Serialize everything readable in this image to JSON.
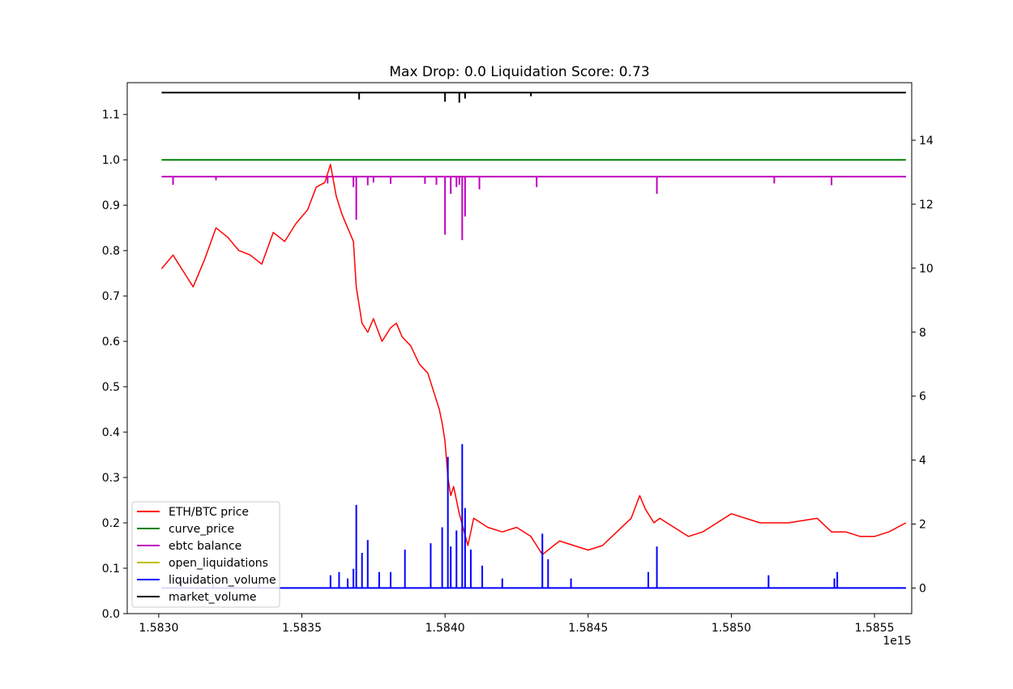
{
  "chart_data": {
    "type": "line",
    "title": "Max Drop: 0.0 Liquidation Score: 0.73",
    "x_offset_label": "1e15",
    "xlabel": "",
    "ylabel_left": "",
    "ylabel_right": "",
    "xlim": [
      1.58289,
      1.58563
    ],
    "ylim_left": [
      0.0,
      1.17
    ],
    "ylim_right": [
      -0.8,
      15.8
    ],
    "x_ticks": [
      1.583,
      1.5835,
      1.584,
      1.5845,
      1.585,
      1.5855
    ],
    "x_tick_labels": [
      "1.5830",
      "1.5835",
      "1.5840",
      "1.5845",
      "1.5850",
      "1.5855"
    ],
    "y_left_ticks": [
      0.0,
      0.1,
      0.2,
      0.3,
      0.4,
      0.5,
      0.6,
      0.7,
      0.8,
      0.9,
      1.0,
      1.1
    ],
    "y_left_tick_labels": [
      "0.0",
      "0.1",
      "0.2",
      "0.3",
      "0.4",
      "0.5",
      "0.6",
      "0.7",
      "0.8",
      "0.9",
      "1.0",
      "1.1"
    ],
    "y_right_ticks": [
      0,
      2,
      4,
      6,
      8,
      10,
      12,
      14
    ],
    "y_right_tick_labels": [
      "0",
      "2",
      "4",
      "6",
      "8",
      "10",
      "12",
      "14"
    ],
    "legend_location": "lower-left",
    "series": [
      {
        "name": "ETH/BTC price",
        "color": "#ff0000",
        "axis": "left",
        "x": [
          1.58301,
          1.58305,
          1.58309,
          1.58312,
          1.58316,
          1.5832,
          1.58324,
          1.58328,
          1.58332,
          1.58336,
          1.5834,
          1.58344,
          1.58348,
          1.58352,
          1.58355,
          1.58358,
          1.5836,
          1.58362,
          1.58364,
          1.58366,
          1.58368,
          1.58369,
          1.58371,
          1.58373,
          1.58375,
          1.58378,
          1.58381,
          1.58383,
          1.58385,
          1.58388,
          1.58391,
          1.58394,
          1.58396,
          1.58398,
          1.58399,
          1.584,
          1.58401,
          1.58402,
          1.58403,
          1.58405,
          1.58408,
          1.5841,
          1.58415,
          1.5842,
          1.58425,
          1.5843,
          1.58432,
          1.58434,
          1.58436,
          1.5844,
          1.58445,
          1.5845,
          1.58455,
          1.5846,
          1.58465,
          1.58468,
          1.5847,
          1.58473,
          1.58475,
          1.5848,
          1.58485,
          1.5849,
          1.58495,
          1.585,
          1.5851,
          1.5852,
          1.5853,
          1.58535,
          1.5854,
          1.58545,
          1.5855,
          1.58555,
          1.58561
        ],
        "values": [
          0.76,
          0.79,
          0.75,
          0.72,
          0.78,
          0.85,
          0.83,
          0.8,
          0.79,
          0.77,
          0.84,
          0.82,
          0.86,
          0.89,
          0.94,
          0.95,
          0.99,
          0.92,
          0.88,
          0.85,
          0.82,
          0.72,
          0.64,
          0.62,
          0.65,
          0.6,
          0.63,
          0.64,
          0.61,
          0.59,
          0.55,
          0.53,
          0.49,
          0.45,
          0.42,
          0.38,
          0.3,
          0.26,
          0.28,
          0.22,
          0.15,
          0.21,
          0.19,
          0.18,
          0.19,
          0.17,
          0.15,
          0.13,
          0.14,
          0.16,
          0.15,
          0.14,
          0.15,
          0.18,
          0.21,
          0.26,
          0.23,
          0.2,
          0.21,
          0.19,
          0.17,
          0.18,
          0.2,
          0.22,
          0.2,
          0.2,
          0.21,
          0.18,
          0.18,
          0.17,
          0.17,
          0.18,
          0.2
        ]
      },
      {
        "name": "curve_price",
        "color": "#008000",
        "axis": "left",
        "x": [
          1.58301,
          1.58561
        ],
        "values": [
          1.0,
          1.0
        ]
      },
      {
        "name": "ebtc balance",
        "color": "#bf00bf",
        "axis": "left",
        "x": [
          1.58301,
          1.58561
        ],
        "values": [
          0.963,
          0.963
        ],
        "dips": [
          [
            1.58305,
            0.945
          ],
          [
            1.5832,
            0.955
          ],
          [
            1.58359,
            0.948
          ],
          [
            1.58368,
            0.94
          ],
          [
            1.58369,
            0.868
          ],
          [
            1.58373,
            0.944
          ],
          [
            1.58375,
            0.95
          ],
          [
            1.58381,
            0.947
          ],
          [
            1.58393,
            0.947
          ],
          [
            1.58397,
            0.945
          ],
          [
            1.584,
            0.835
          ],
          [
            1.58402,
            0.925
          ],
          [
            1.58404,
            0.94
          ],
          [
            1.58405,
            0.945
          ],
          [
            1.58406,
            0.823
          ],
          [
            1.58407,
            0.875
          ],
          [
            1.58412,
            0.935
          ],
          [
            1.58432,
            0.94
          ],
          [
            1.58474,
            0.925
          ],
          [
            1.58515,
            0.948
          ],
          [
            1.58535,
            0.944
          ]
        ]
      },
      {
        "name": "open_liquidations",
        "color": "#bfbf00",
        "axis": "left",
        "x": [],
        "values": []
      },
      {
        "name": "liquidation_volume",
        "color": "#0000ff",
        "axis": "right",
        "x": [
          1.58301,
          1.58561
        ],
        "values": [
          0.0,
          0.0
        ],
        "spikes": [
          [
            1.58308,
            0.25
          ],
          [
            1.58319,
            0.2
          ],
          [
            1.58335,
            0.18
          ],
          [
            1.5836,
            0.4
          ],
          [
            1.58363,
            0.5
          ],
          [
            1.58366,
            0.3
          ],
          [
            1.58368,
            0.6
          ],
          [
            1.58369,
            2.6
          ],
          [
            1.58371,
            1.1
          ],
          [
            1.58373,
            1.5
          ],
          [
            1.58377,
            0.5
          ],
          [
            1.58381,
            0.5
          ],
          [
            1.58386,
            1.2
          ],
          [
            1.58395,
            1.4
          ],
          [
            1.58399,
            1.9
          ],
          [
            1.58401,
            4.1
          ],
          [
            1.58402,
            1.3
          ],
          [
            1.58404,
            1.8
          ],
          [
            1.58406,
            4.5
          ],
          [
            1.58407,
            2.5
          ],
          [
            1.58409,
            1.2
          ],
          [
            1.58413,
            0.7
          ],
          [
            1.5842,
            0.3
          ],
          [
            1.58434,
            1.7
          ],
          [
            1.58436,
            0.9
          ],
          [
            1.58444,
            0.3
          ],
          [
            1.58471,
            0.5
          ],
          [
            1.58474,
            1.3
          ],
          [
            1.58513,
            0.4
          ],
          [
            1.58536,
            0.3
          ],
          [
            1.58537,
            0.5
          ]
        ]
      },
      {
        "name": "market_volume",
        "color": "#000000",
        "axis": "left",
        "x": [
          1.58301,
          1.58561
        ],
        "values": [
          1.148,
          1.148
        ],
        "dips": [
          [
            1.5837,
            1.133
          ],
          [
            1.584,
            1.128
          ],
          [
            1.58405,
            1.126
          ],
          [
            1.58407,
            1.135
          ],
          [
            1.5843,
            1.14
          ]
        ]
      }
    ]
  }
}
